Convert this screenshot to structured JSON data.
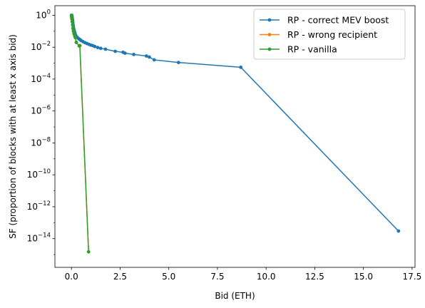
{
  "chart_data": {
    "type": "line",
    "title": "",
    "xlabel": "Bid (ETH)",
    "ylabel": "SF (proportion of blocks with at least x axis bid)",
    "xlim": [
      -0.85,
      17.65
    ],
    "ylim_log10": [
      -15.8,
      0.6
    ],
    "yscale": "log",
    "grid": false,
    "legend_position": "top-right",
    "x_ticks": [
      0.0,
      2.5,
      5.0,
      7.5,
      10.0,
      12.5,
      15.0,
      17.5
    ],
    "x_tick_labels": [
      "0.0",
      "2.5",
      "5.0",
      "7.5",
      "10.0",
      "12.5",
      "15.0",
      "17.5"
    ],
    "y_tick_exponents": [
      0,
      -2,
      -4,
      -6,
      -8,
      -10,
      -12,
      -14
    ],
    "series": [
      {
        "name": "RP - correct MEV boost",
        "color": "#1f77b4",
        "points": [
          [
            0.02,
            1.0
          ],
          [
            0.03,
            0.85
          ],
          [
            0.04,
            0.7
          ],
          [
            0.05,
            0.55
          ],
          [
            0.06,
            0.45
          ],
          [
            0.07,
            0.35
          ],
          [
            0.08,
            0.27
          ],
          [
            0.09,
            0.22
          ],
          [
            0.1,
            0.18
          ],
          [
            0.12,
            0.14
          ],
          [
            0.14,
            0.11
          ],
          [
            0.16,
            0.09
          ],
          [
            0.18,
            0.075
          ],
          [
            0.2,
            0.062
          ],
          [
            0.23,
            0.052
          ],
          [
            0.26,
            0.045
          ],
          [
            0.3,
            0.04
          ],
          [
            0.35,
            0.036
          ],
          [
            0.4,
            0.032
          ],
          [
            0.45,
            0.029
          ],
          [
            0.5,
            0.026
          ],
          [
            0.6,
            0.022
          ],
          [
            0.7,
            0.019
          ],
          [
            0.8,
            0.017
          ],
          [
            0.9,
            0.015
          ],
          [
            1.0,
            0.0135
          ],
          [
            1.1,
            0.0125
          ],
          [
            1.2,
            0.011
          ],
          [
            1.35,
            0.0095
          ],
          [
            1.5,
            0.0085
          ],
          [
            1.75,
            0.0075
          ],
          [
            2.25,
            0.0055
          ],
          [
            2.65,
            0.0048
          ],
          [
            2.75,
            0.0042
          ],
          [
            3.2,
            0.0035
          ],
          [
            3.85,
            0.0028
          ],
          [
            4.0,
            0.0024
          ],
          [
            4.25,
            0.0016
          ],
          [
            5.5,
            0.0011
          ],
          [
            8.7,
            0.00055
          ],
          [
            16.8,
            3e-14
          ]
        ]
      },
      {
        "name": "RP - wrong recipient",
        "color": "#ff7f0e",
        "points": [
          [
            0.0,
            1.0
          ],
          [
            0.01,
            0.8
          ],
          [
            0.02,
            0.6
          ],
          [
            0.04,
            0.4
          ],
          [
            0.06,
            0.25
          ],
          [
            0.08,
            0.15
          ],
          [
            0.1,
            0.1
          ],
          [
            0.13,
            0.07
          ],
          [
            0.17,
            0.05
          ],
          [
            0.2,
            0.04
          ],
          [
            0.25,
            0.02
          ],
          [
            0.4,
            0.012
          ],
          [
            0.43,
            0.0125
          ],
          [
            0.88,
            1.5e-15
          ]
        ]
      },
      {
        "name": "RP - vanilla",
        "color": "#2ca02c",
        "points": [
          [
            0.0,
            1.0
          ],
          [
            0.01,
            0.8
          ],
          [
            0.02,
            0.6
          ],
          [
            0.04,
            0.4
          ],
          [
            0.06,
            0.25
          ],
          [
            0.08,
            0.15
          ],
          [
            0.1,
            0.1
          ],
          [
            0.13,
            0.07
          ],
          [
            0.17,
            0.05
          ],
          [
            0.2,
            0.04
          ],
          [
            0.25,
            0.02
          ],
          [
            0.4,
            0.012
          ],
          [
            0.43,
            0.0125
          ],
          [
            0.88,
            1.5e-15
          ]
        ]
      }
    ]
  }
}
